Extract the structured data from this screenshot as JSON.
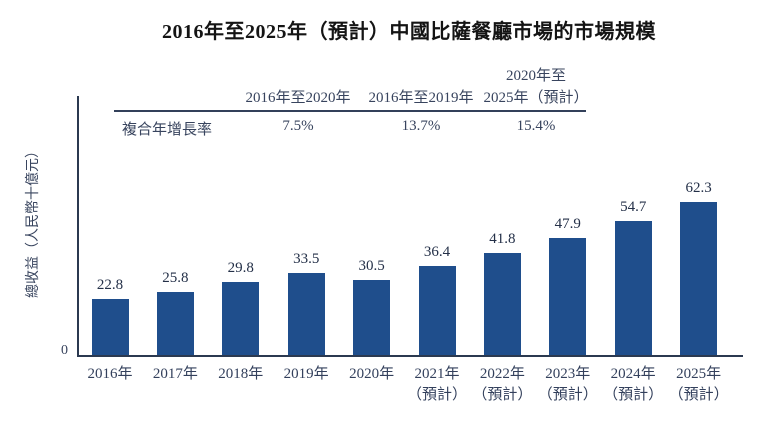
{
  "title": "2016年至2025年（預計）中國比薩餐廳市場的市場規模",
  "cagr_table": {
    "row_label": "複合年增長率",
    "columns": [
      {
        "header_line1": "",
        "header_line2": "2016年至2020年",
        "value": "7.5%"
      },
      {
        "header_line1": "",
        "header_line2": "2016年至2019年",
        "value": "13.7%"
      },
      {
        "header_line1": "2020年至",
        "header_line2": "2025年（預計）",
        "value": "15.4%"
      }
    ]
  },
  "chart_data": {
    "type": "bar",
    "title": "2016年至2025年（預計）中國比薩餐廳市場的市場規模",
    "ylabel": "總收益（人民幣十億元）",
    "xlabel": "",
    "y_origin_label": "0",
    "ylim": [
      0,
      70
    ],
    "grid": false,
    "legend": "none",
    "bar_color": "#1f4e8c",
    "categories": [
      {
        "line1": "2016年",
        "line2": ""
      },
      {
        "line1": "2017年",
        "line2": ""
      },
      {
        "line1": "2018年",
        "line2": ""
      },
      {
        "line1": "2019年",
        "line2": ""
      },
      {
        "line1": "2020年",
        "line2": ""
      },
      {
        "line1": "2021年",
        "line2": "（預計）"
      },
      {
        "line1": "2022年",
        "line2": "（預計）"
      },
      {
        "line1": "2023年",
        "line2": "（預計）"
      },
      {
        "line1": "2024年",
        "line2": "（預計）"
      },
      {
        "line1": "2025年",
        "line2": "（預計）"
      }
    ],
    "values": [
      22.8,
      25.8,
      29.8,
      33.5,
      30.5,
      36.4,
      41.8,
      47.9,
      54.7,
      62.3
    ],
    "value_labels": [
      "22.8",
      "25.8",
      "29.8",
      "33.5",
      "30.5",
      "36.4",
      "41.8",
      "47.9",
      "54.7",
      "62.3"
    ]
  }
}
